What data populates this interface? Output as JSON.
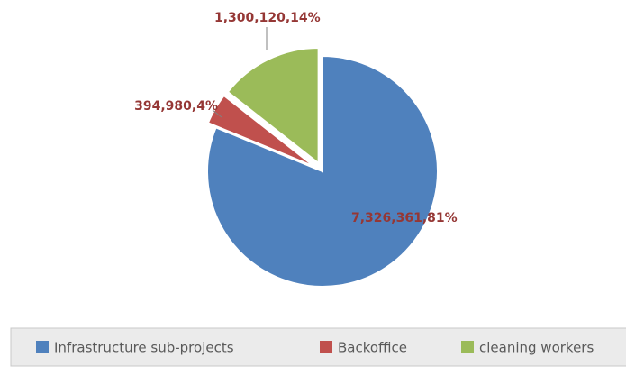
{
  "chart_data": {
    "type": "pie",
    "categories": [
      "Infrastructure sub-projects",
      "Backoffice",
      "cleaning workers"
    ],
    "values": [
      7326361,
      394980,
      1300120
    ],
    "value_labels": [
      "7,326,361,81%",
      "394,980,4%",
      "1,300,120,14%"
    ],
    "colors": [
      "#4f81bd",
      "#c0504d",
      "#9bbb59"
    ],
    "legend": "bottom"
  }
}
